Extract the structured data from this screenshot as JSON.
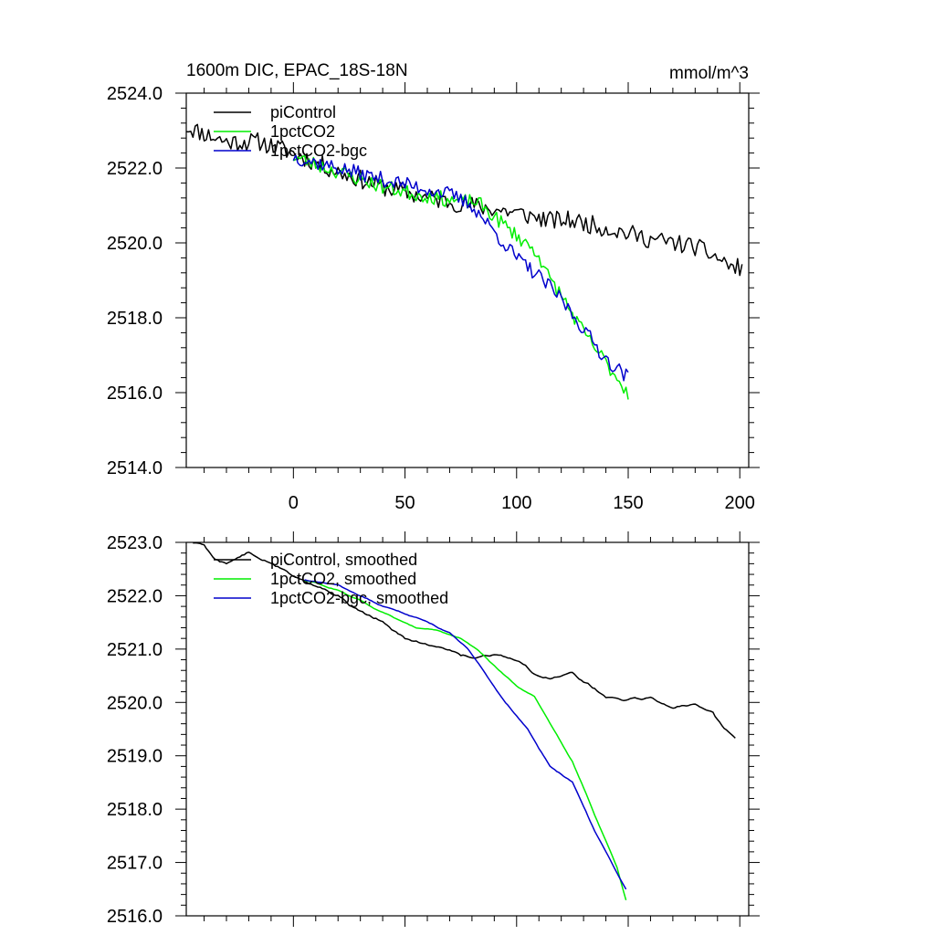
{
  "chart_data": [
    {
      "type": "line",
      "title_left": "1600m DIC, EPAC_18S-18N",
      "title_right": "mmol/m^3",
      "xlim": [
        -48,
        204
      ],
      "ylim": [
        2514.0,
        2524.0
      ],
      "x_ticks": [
        0,
        50,
        100,
        150,
        200
      ],
      "x_tick_labels": [
        "0",
        "50",
        "100",
        "150",
        "200"
      ],
      "y_ticks": [
        2514.0,
        2516.0,
        2518.0,
        2520.0,
        2522.0,
        2524.0
      ],
      "y_tick_labels": [
        "2514.0",
        "2516.0",
        "2518.0",
        "2520.0",
        "2522.0",
        "2524.0"
      ],
      "legend_position": "top-left",
      "series": [
        {
          "name": "piControl",
          "color": "#000000",
          "noise": 0.25,
          "seed": 11,
          "points": [
            [
              -48,
              2523.1
            ],
            [
              -30,
              2522.7
            ],
            [
              -15,
              2522.7
            ],
            [
              0,
              2522.4
            ],
            [
              20,
              2521.9
            ],
            [
              40,
              2521.5
            ],
            [
              60,
              2521.2
            ],
            [
              80,
              2521.0
            ],
            [
              100,
              2520.8
            ],
            [
              115,
              2520.6
            ],
            [
              125,
              2520.6
            ],
            [
              140,
              2520.4
            ],
            [
              160,
              2520.1
            ],
            [
              180,
              2519.9
            ],
            [
              190,
              2519.6
            ],
            [
              198,
              2519.3
            ],
            [
              201,
              2519.4
            ]
          ]
        },
        {
          "name": "1pctCO2",
          "color": "#00ee00",
          "noise": 0.2,
          "seed": 23,
          "points": [
            [
              0,
              2522.3
            ],
            [
              20,
              2521.9
            ],
            [
              40,
              2521.5
            ],
            [
              55,
              2521.3
            ],
            [
              65,
              2521.2
            ],
            [
              75,
              2521.1
            ],
            [
              82,
              2521.1
            ],
            [
              90,
              2520.7
            ],
            [
              100,
              2520.2
            ],
            [
              110,
              2519.7
            ],
            [
              113,
              2519.2
            ],
            [
              120,
              2518.6
            ],
            [
              130,
              2517.6
            ],
            [
              140,
              2516.8
            ],
            [
              150,
              2516.0
            ]
          ]
        },
        {
          "name": "1pctCO2-bgc",
          "color": "#0000cc",
          "noise": 0.2,
          "seed": 37,
          "points": [
            [
              0,
              2522.3
            ],
            [
              20,
              2522.0
            ],
            [
              40,
              2521.7
            ],
            [
              55,
              2521.5
            ],
            [
              70,
              2521.3
            ],
            [
              80,
              2521.0
            ],
            [
              90,
              2520.3
            ],
            [
              100,
              2519.6
            ],
            [
              110,
              2519.1
            ],
            [
              120,
              2518.5
            ],
            [
              130,
              2517.7
            ],
            [
              140,
              2516.9
            ],
            [
              150,
              2516.4
            ]
          ]
        }
      ]
    },
    {
      "type": "line",
      "xlim": [
        -48,
        204
      ],
      "ylim": [
        2516.0,
        2523.0
      ],
      "x_ticks": [
        0,
        50,
        100,
        150,
        200
      ],
      "y_ticks": [
        2516.0,
        2517.0,
        2518.0,
        2519.0,
        2520.0,
        2521.0,
        2522.0,
        2523.0
      ],
      "y_tick_labels": [
        "2516.0",
        "2517.0",
        "2518.0",
        "2519.0",
        "2520.0",
        "2521.0",
        "2522.0",
        "2523.0"
      ],
      "legend_position": "top-left",
      "series": [
        {
          "name": "piControl, smoothed",
          "color": "#000000",
          "noise": 0.04,
          "seed": 5,
          "points": [
            [
              -45,
              2523.0
            ],
            [
              -40,
              2522.95
            ],
            [
              -35,
              2522.7
            ],
            [
              -30,
              2522.6
            ],
            [
              -20,
              2522.8
            ],
            [
              -10,
              2522.6
            ],
            [
              0,
              2522.4
            ],
            [
              10,
              2522.2
            ],
            [
              20,
              2522.0
            ],
            [
              30,
              2521.7
            ],
            [
              40,
              2521.5
            ],
            [
              50,
              2521.2
            ],
            [
              60,
              2521.1
            ],
            [
              70,
              2521.0
            ],
            [
              75,
              2520.9
            ],
            [
              80,
              2520.85
            ],
            [
              90,
              2520.9
            ],
            [
              100,
              2520.8
            ],
            [
              110,
              2520.5
            ],
            [
              115,
              2520.45
            ],
            [
              125,
              2520.55
            ],
            [
              130,
              2520.4
            ],
            [
              140,
              2520.1
            ],
            [
              150,
              2520.05
            ],
            [
              160,
              2520.1
            ],
            [
              170,
              2519.9
            ],
            [
              180,
              2519.95
            ],
            [
              188,
              2519.8
            ],
            [
              193,
              2519.5
            ],
            [
              198,
              2519.35
            ]
          ]
        },
        {
          "name": "1pctCO2, smoothed",
          "color": "#00ee00",
          "noise": 0.015,
          "seed": 8,
          "points": [
            [
              5,
              2522.3
            ],
            [
              20,
              2522.1
            ],
            [
              40,
              2521.7
            ],
            [
              55,
              2521.4
            ],
            [
              65,
              2521.35
            ],
            [
              75,
              2521.2
            ],
            [
              82,
              2521.0
            ],
            [
              90,
              2520.7
            ],
            [
              100,
              2520.3
            ],
            [
              108,
              2520.1
            ],
            [
              115,
              2519.6
            ],
            [
              125,
              2518.9
            ],
            [
              135,
              2517.9
            ],
            [
              145,
              2516.9
            ],
            [
              149,
              2516.3
            ]
          ]
        },
        {
          "name": "1pctCO2-bgc, smoothed",
          "color": "#0000cc",
          "noise": 0.015,
          "seed": 13,
          "points": [
            [
              5,
              2522.3
            ],
            [
              20,
              2522.2
            ],
            [
              40,
              2521.8
            ],
            [
              55,
              2521.6
            ],
            [
              70,
              2521.3
            ],
            [
              78,
              2521.0
            ],
            [
              85,
              2520.6
            ],
            [
              95,
              2520.0
            ],
            [
              105,
              2519.5
            ],
            [
              115,
              2518.8
            ],
            [
              125,
              2518.5
            ],
            [
              135,
              2517.6
            ],
            [
              145,
              2516.8
            ],
            [
              149,
              2516.5
            ]
          ]
        }
      ]
    }
  ]
}
